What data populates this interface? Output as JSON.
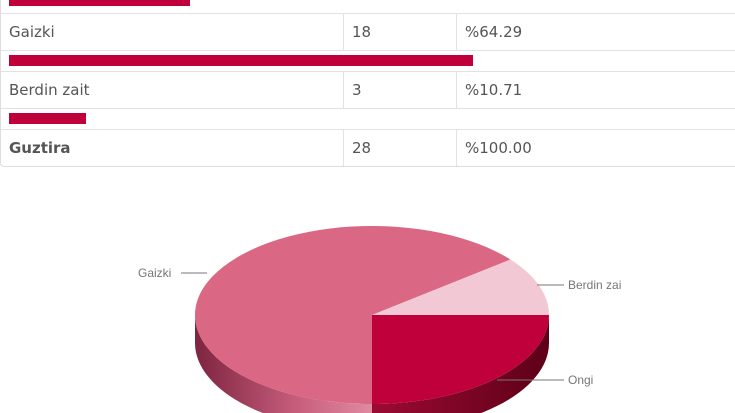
{
  "table": {
    "rows": [
      {
        "label": "Gaizki",
        "count": "18",
        "percent": "%64.29",
        "bar_fraction": 0.6429
      },
      {
        "label": "Berdin zait",
        "count": "3",
        "percent": "%10.71",
        "bar_fraction": 0.1071
      }
    ],
    "top_bar_fraction": 0.25,
    "total": {
      "label": "Guztira",
      "count": "28",
      "percent": "%100.00"
    }
  },
  "chart_data": {
    "type": "pie",
    "style": "3d",
    "slices": [
      {
        "label": "Ongi",
        "value": 7,
        "color": "#c0003a",
        "side_color": "#8a0a2c"
      },
      {
        "label": "Gaizki",
        "value": 18,
        "color": "#da6784",
        "side_color": "#a33d5a"
      },
      {
        "label": "Berdin zai",
        "value": 3,
        "color": "#f1c8d3",
        "side_color": "#c79aa8"
      }
    ]
  }
}
